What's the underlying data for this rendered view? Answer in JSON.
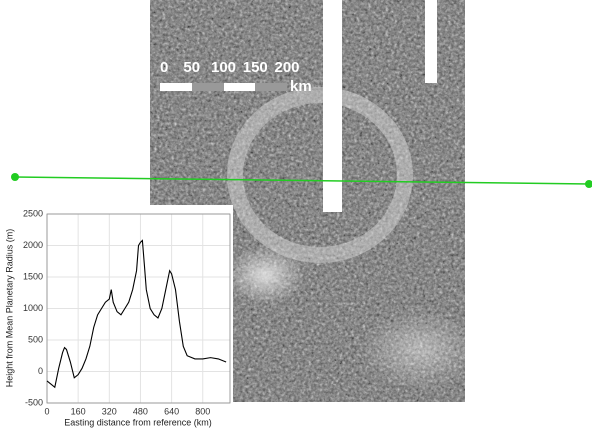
{
  "chart_data": {
    "type": "line",
    "x_label": "Easting distance from reference (km)",
    "y_label": "Height from Mean Planetary Radius (m)",
    "x": [
      0,
      20,
      40,
      60,
      80,
      90,
      100,
      120,
      140,
      160,
      180,
      200,
      220,
      240,
      260,
      280,
      300,
      320,
      330,
      340,
      360,
      380,
      400,
      420,
      440,
      460,
      470,
      480,
      490,
      500,
      510,
      530,
      550,
      570,
      590,
      610,
      630,
      640,
      660,
      680,
      700,
      720,
      760,
      800,
      840,
      880,
      920
    ],
    "values": [
      -150,
      -200,
      -250,
      50,
      300,
      380,
      350,
      150,
      -100,
      -50,
      50,
      200,
      400,
      700,
      900,
      1000,
      1100,
      1150,
      1300,
      1100,
      950,
      900,
      1000,
      1100,
      1300,
      1600,
      2000,
      2050,
      2080,
      1700,
      1300,
      1000,
      900,
      850,
      1000,
      1300,
      1600,
      1550,
      1300,
      800,
      400,
      250,
      200,
      200,
      220,
      200,
      150
    ],
    "color": "#000000",
    "xlim": [
      0,
      940
    ],
    "xticks": [
      0,
      160,
      320,
      480,
      640,
      800
    ],
    "ylim": [
      -500,
      2500
    ],
    "yticks": [
      -500,
      0,
      500,
      1000,
      1500,
      2000,
      2500
    ],
    "grid": true
  },
  "scale_bar": {
    "ticks": [
      0,
      50,
      100,
      150,
      200
    ],
    "unit": "km"
  }
}
